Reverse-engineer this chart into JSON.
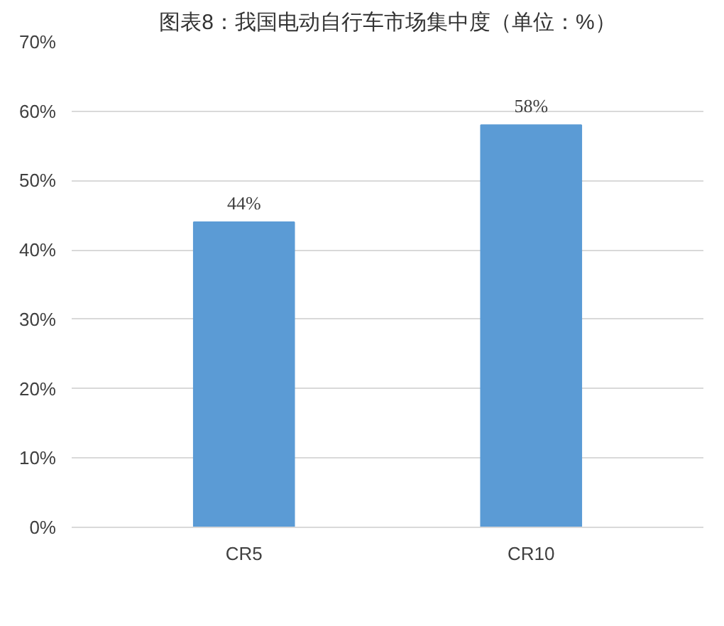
{
  "chart_data": {
    "type": "bar",
    "title": "图表8：我国电动自行车市场集中度（单位：%）",
    "categories": [
      "CR5",
      "CR10"
    ],
    "values": [
      44,
      58
    ],
    "value_labels": [
      "44%",
      "58%"
    ],
    "color": "#5b9bd5",
    "ylim": [
      0,
      70
    ],
    "yticks": [
      {
        "value": 0,
        "label": "0%"
      },
      {
        "value": 10,
        "label": "10%"
      },
      {
        "value": 20,
        "label": "20%"
      },
      {
        "value": 30,
        "label": "30%"
      },
      {
        "value": 40,
        "label": "40%"
      },
      {
        "value": 50,
        "label": "50%"
      },
      {
        "value": 60,
        "label": "60%"
      },
      {
        "value": 70,
        "label": "70%"
      }
    ],
    "grid": "y"
  }
}
